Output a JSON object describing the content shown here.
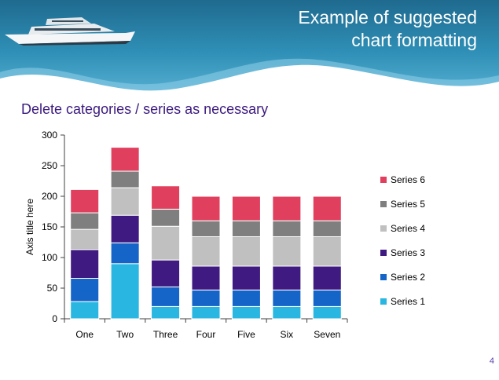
{
  "slide": {
    "title_line1": "Example of suggested",
    "title_line2": "chart formatting",
    "subtitle": "Delete categories / series as necessary",
    "page_number": "4"
  },
  "chart_data": {
    "type": "bar",
    "stacked": true,
    "categories": [
      "One",
      "Two",
      "Three",
      "Four",
      "Five",
      "Six",
      "Seven"
    ],
    "series": [
      {
        "name": "Series 1",
        "color": "#29b6e0",
        "values": [
          28,
          90,
          20,
          20,
          20,
          20,
          20
        ]
      },
      {
        "name": "Series 2",
        "color": "#1565c8",
        "values": [
          38,
          34,
          32,
          27,
          27,
          27,
          27
        ]
      },
      {
        "name": "Series 3",
        "color": "#3f1a80",
        "values": [
          47,
          45,
          44,
          39,
          39,
          39,
          39
        ]
      },
      {
        "name": "Series 4",
        "color": "#c0c0c0",
        "values": [
          33,
          45,
          55,
          48,
          48,
          48,
          48
        ]
      },
      {
        "name": "Series 5",
        "color": "#7f7f7f",
        "values": [
          27,
          27,
          28,
          26,
          26,
          26,
          26
        ]
      },
      {
        "name": "Series 6",
        "color": "#e0405e",
        "values": [
          38,
          39,
          38,
          40,
          40,
          40,
          40
        ]
      }
    ],
    "ylabel": "Axis title here",
    "ylim": [
      0,
      300
    ],
    "yticks": [
      0,
      50,
      100,
      150,
      200,
      250,
      300
    ],
    "legend_position": "right",
    "grid": false
  }
}
